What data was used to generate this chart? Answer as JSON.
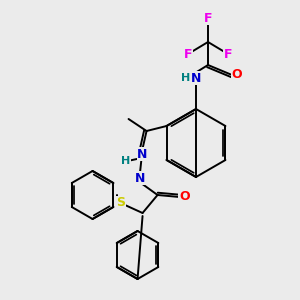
{
  "background_color": "#ebebeb",
  "atom_colors": {
    "F": "#ee00ee",
    "O": "#ff0000",
    "N": "#0000cc",
    "S": "#cccc00",
    "H": "#008080",
    "C": "#000000"
  },
  "bond_color": "#000000",
  "figsize": [
    3.0,
    3.0
  ],
  "dpi": 100
}
